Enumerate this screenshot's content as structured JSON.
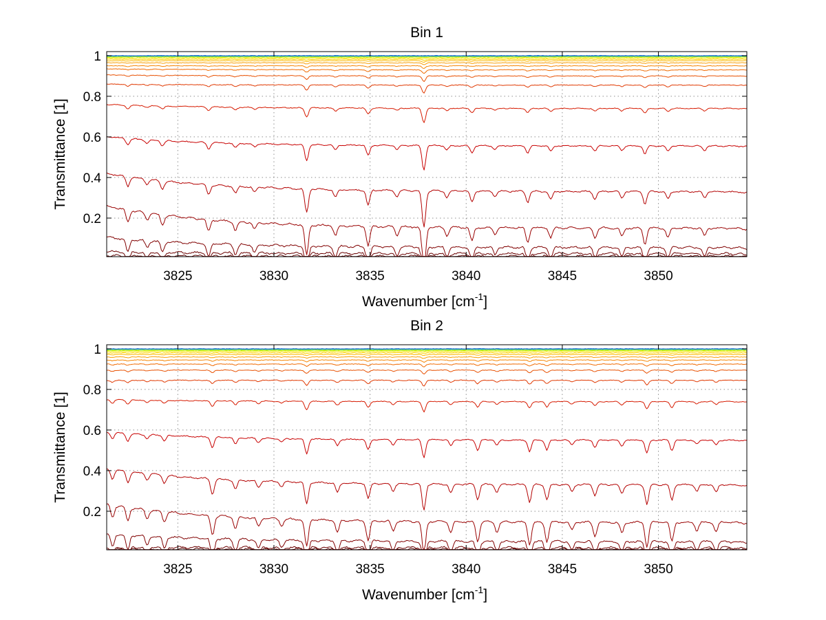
{
  "chart_data": [
    {
      "type": "line",
      "title": "Bin 1",
      "xlabel": "Wavenumber [cm",
      "xlabel_sup": "-1",
      "xlabel_end": "]",
      "ylabel": "Transmittance [1]",
      "xlim": [
        3821.3,
        3854.6
      ],
      "ylim": [
        0.01,
        1.02
      ],
      "xticks": [
        3825,
        3830,
        3835,
        3840,
        3845,
        3850
      ],
      "xtick_labels": [
        "3825",
        "3830",
        "3835",
        "3840",
        "3845",
        "3850"
      ],
      "yticks": [
        0.2,
        0.4,
        0.6,
        0.8,
        1.0
      ],
      "ytick_labels": [
        "0.2",
        "0.4",
        "0.6",
        "0.8",
        "1"
      ],
      "grid": true,
      "absorption_lines": [
        {
          "x": 3822.4,
          "depth": 0.22
        },
        {
          "x": 3823.4,
          "depth": 0.12
        },
        {
          "x": 3824.2,
          "depth": 0.18
        },
        {
          "x": 3826.6,
          "depth": 0.22
        },
        {
          "x": 3828.0,
          "depth": 0.16
        },
        {
          "x": 3829.0,
          "depth": 0.12
        },
        {
          "x": 3831.7,
          "depth": 0.55
        },
        {
          "x": 3833.2,
          "depth": 0.18
        },
        {
          "x": 3834.9,
          "depth": 0.35
        },
        {
          "x": 3836.4,
          "depth": 0.15
        },
        {
          "x": 3837.8,
          "depth": 0.85
        },
        {
          "x": 3839.0,
          "depth": 0.15
        },
        {
          "x": 3840.3,
          "depth": 0.25
        },
        {
          "x": 3841.5,
          "depth": 0.12
        },
        {
          "x": 3843.2,
          "depth": 0.25
        },
        {
          "x": 3844.4,
          "depth": 0.18
        },
        {
          "x": 3846.7,
          "depth": 0.18
        },
        {
          "x": 3848.1,
          "depth": 0.15
        },
        {
          "x": 3849.3,
          "depth": 0.28
        },
        {
          "x": 3850.5,
          "depth": 0.18
        },
        {
          "x": 3852.4,
          "depth": 0.15
        }
      ],
      "series": [
        {
          "start": 0.015,
          "base": 0.012,
          "color": "#5a0000"
        },
        {
          "start": 0.035,
          "base": 0.025,
          "color": "#6b0000"
        },
        {
          "start": 0.105,
          "base": 0.055,
          "color": "#800000"
        },
        {
          "start": 0.26,
          "base": 0.15,
          "color": "#990000"
        },
        {
          "start": 0.42,
          "base": 0.33,
          "color": "#b30000"
        },
        {
          "start": 0.6,
          "base": 0.555,
          "color": "#c80000"
        },
        {
          "start": 0.76,
          "base": 0.74,
          "color": "#d61a00"
        },
        {
          "start": 0.86,
          "base": 0.855,
          "color": "#e03800"
        },
        {
          "start": 0.905,
          "base": 0.9,
          "color": "#e85000"
        },
        {
          "start": 0.935,
          "base": 0.93,
          "color": "#ef6a00"
        },
        {
          "start": 0.95,
          "base": 0.95,
          "color": "#f58400"
        },
        {
          "start": 0.965,
          "base": 0.965,
          "color": "#f99e00"
        },
        {
          "start": 0.975,
          "base": 0.975,
          "color": "#fcb800"
        },
        {
          "start": 0.982,
          "base": 0.982,
          "color": "#ffd000"
        },
        {
          "start": 0.988,
          "base": 0.988,
          "color": "#f2e600"
        },
        {
          "start": 0.993,
          "base": 0.993,
          "color": "#c8f000"
        },
        {
          "start": 0.996,
          "base": 0.996,
          "color": "#80e040"
        },
        {
          "start": 0.998,
          "base": 0.998,
          "color": "#40d0a0"
        },
        {
          "start": 0.999,
          "base": 0.999,
          "color": "#20a0e0"
        },
        {
          "start": 1.0,
          "base": 1.0,
          "color": "#1060c0"
        }
      ]
    },
    {
      "type": "line",
      "title": "Bin 2",
      "xlabel": "Wavenumber [cm",
      "xlabel_sup": "-1",
      "xlabel_end": "]",
      "ylabel": "Transmittance [1]",
      "xlim": [
        3821.3,
        3854.6
      ],
      "ylim": [
        0.01,
        1.02
      ],
      "xticks": [
        3825,
        3830,
        3835,
        3840,
        3845,
        3850
      ],
      "xtick_labels": [
        "3825",
        "3830",
        "3835",
        "3840",
        "3845",
        "3850"
      ],
      "yticks": [
        0.2,
        0.4,
        0.6,
        0.8,
        1.0
      ],
      "ytick_labels": [
        "0.2",
        "0.4",
        "0.6",
        "0.8",
        "1"
      ],
      "grid": true,
      "absorption_lines": [
        {
          "x": 3821.6,
          "depth": 0.22
        },
        {
          "x": 3822.4,
          "depth": 0.25
        },
        {
          "x": 3823.4,
          "depth": 0.15
        },
        {
          "x": 3824.3,
          "depth": 0.18
        },
        {
          "x": 3826.8,
          "depth": 0.35
        },
        {
          "x": 3828.0,
          "depth": 0.22
        },
        {
          "x": 3829.2,
          "depth": 0.15
        },
        {
          "x": 3830.4,
          "depth": 0.12
        },
        {
          "x": 3831.7,
          "depth": 0.5
        },
        {
          "x": 3833.3,
          "depth": 0.22
        },
        {
          "x": 3834.9,
          "depth": 0.35
        },
        {
          "x": 3836.2,
          "depth": 0.18
        },
        {
          "x": 3837.8,
          "depth": 0.6
        },
        {
          "x": 3839.2,
          "depth": 0.2
        },
        {
          "x": 3840.6,
          "depth": 0.35
        },
        {
          "x": 3841.6,
          "depth": 0.18
        },
        {
          "x": 3843.3,
          "depth": 0.4
        },
        {
          "x": 3844.2,
          "depth": 0.35
        },
        {
          "x": 3845.5,
          "depth": 0.15
        },
        {
          "x": 3846.7,
          "depth": 0.25
        },
        {
          "x": 3848.1,
          "depth": 0.2
        },
        {
          "x": 3849.4,
          "depth": 0.45
        },
        {
          "x": 3850.7,
          "depth": 0.35
        },
        {
          "x": 3852.0,
          "depth": 0.15
        },
        {
          "x": 3853.0,
          "depth": 0.18
        }
      ],
      "series": [
        {
          "start": 0.015,
          "base": 0.012,
          "color": "#5a0000"
        },
        {
          "start": 0.025,
          "base": 0.02,
          "color": "#6b0000"
        },
        {
          "start": 0.09,
          "base": 0.05,
          "color": "#800000"
        },
        {
          "start": 0.235,
          "base": 0.145,
          "color": "#990000"
        },
        {
          "start": 0.41,
          "base": 0.33,
          "color": "#b30000"
        },
        {
          "start": 0.59,
          "base": 0.55,
          "color": "#c80000"
        },
        {
          "start": 0.75,
          "base": 0.74,
          "color": "#d61a00"
        },
        {
          "start": 0.845,
          "base": 0.845,
          "color": "#e03800"
        },
        {
          "start": 0.895,
          "base": 0.895,
          "color": "#e85000"
        },
        {
          "start": 0.925,
          "base": 0.925,
          "color": "#ef6a00"
        },
        {
          "start": 0.945,
          "base": 0.945,
          "color": "#f58400"
        },
        {
          "start": 0.96,
          "base": 0.96,
          "color": "#f99e00"
        },
        {
          "start": 0.972,
          "base": 0.972,
          "color": "#fcb800"
        },
        {
          "start": 0.98,
          "base": 0.98,
          "color": "#ffd000"
        },
        {
          "start": 0.987,
          "base": 0.987,
          "color": "#f2e600"
        },
        {
          "start": 0.992,
          "base": 0.992,
          "color": "#c8f000"
        },
        {
          "start": 0.995,
          "base": 0.995,
          "color": "#80e040"
        },
        {
          "start": 0.998,
          "base": 0.998,
          "color": "#40d0a0"
        },
        {
          "start": 0.999,
          "base": 0.999,
          "color": "#20a0e0"
        },
        {
          "start": 1.0,
          "base": 1.0,
          "color": "#1060c0"
        }
      ]
    }
  ]
}
